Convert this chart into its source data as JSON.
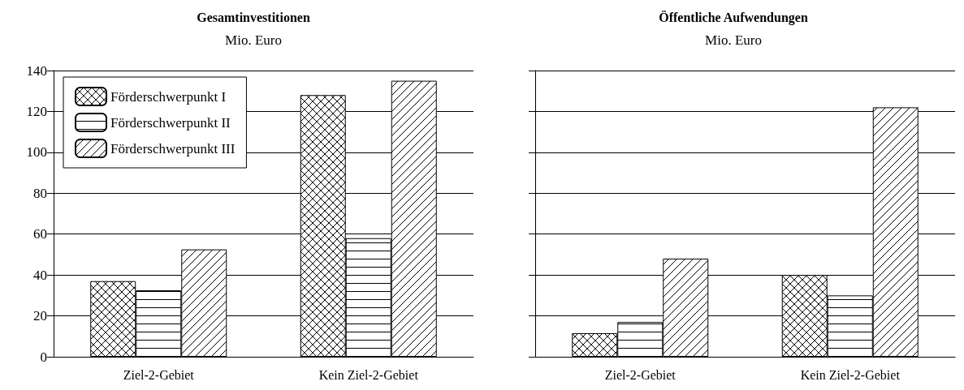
{
  "chart_data": [
    {
      "type": "bar",
      "title": "Gesamtinvestitionen",
      "subtitle": "Mio. Euro",
      "categories": [
        "Ziel-2-Gebiet",
        "Kein Ziel-2-Gebiet"
      ],
      "series": [
        {
          "name": "Förderschwerpunkt I",
          "color": "#000000",
          "values": [
            37,
            128
          ]
        },
        {
          "name": "Förderschwerpunkt II",
          "color": "#000000",
          "values": [
            32.5,
            58
          ]
        },
        {
          "name": "Förderschwerpunkt III",
          "color": "#000000",
          "values": [
            52.5,
            135
          ]
        }
      ],
      "ylim": [
        0,
        140
      ],
      "yticks": [
        0,
        20,
        40,
        60,
        80,
        100,
        120,
        140
      ],
      "grid": "y",
      "legend": "top left"
    },
    {
      "type": "bar",
      "title": "Öffentliche Aufwendungen",
      "subtitle": "Mio. Euro",
      "categories": [
        "Ziel-2-Gebiet",
        "Kein Ziel-2-Gebiet"
      ],
      "series": [
        {
          "color": "#000000",
          "values": [
            11.5,
            40
          ]
        },
        {
          "color": "#000000",
          "values": [
            17,
            30
          ]
        },
        {
          "color": "#000000",
          "values": [
            48,
            122
          ]
        }
      ],
      "ylim": [
        0,
        140
      ],
      "yticks": [
        0,
        20,
        40,
        60,
        80,
        100,
        120,
        140
      ],
      "grid": "y",
      "tick_labels": "x"
    }
  ]
}
